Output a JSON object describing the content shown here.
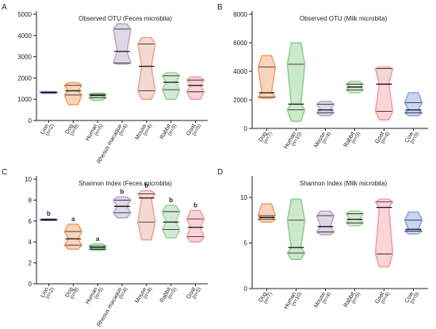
{
  "chart_data": [
    {
      "panel": "A",
      "type": "violin",
      "title": "Observed OTU (Feces microbita)",
      "ylim": [
        0,
        5000
      ],
      "yticks": [
        0,
        1000,
        2000,
        3000,
        4000,
        5000
      ],
      "groups": [
        {
          "name": "Lion",
          "n": "(n=2)",
          "color": "#8aa3d8",
          "min": 1280,
          "max": 1360,
          "q1": 1300,
          "median": 1320,
          "q3": 1340,
          "letter": ""
        },
        {
          "name": "Dog",
          "n": "(n=8)",
          "color": "#f2a06a",
          "min": 750,
          "max": 1780,
          "q1": 1200,
          "median": 1400,
          "q3": 1650,
          "letter": ""
        },
        {
          "name": "Human",
          "n": "(n=5)",
          "color": "#8fcf8f",
          "min": 950,
          "max": 1280,
          "q1": 1080,
          "median": 1180,
          "q3": 1230,
          "letter": ""
        },
        {
          "name": "Rhesus macaque",
          "n": "(n=4)",
          "color": "#b6a8cf",
          "min": 2650,
          "max": 4550,
          "q1": 2700,
          "median": 3250,
          "q3": 4300,
          "letter": ""
        },
        {
          "name": "Mouse",
          "n": "(n=4)",
          "color": "#e8a99a",
          "min": 1000,
          "max": 3900,
          "q1": 1400,
          "median": 2550,
          "q3": 3600,
          "letter": ""
        },
        {
          "name": "Rabbit",
          "n": "(n=5)",
          "color": "#9ed39e",
          "min": 1000,
          "max": 2250,
          "q1": 1450,
          "median": 1800,
          "q3": 2100,
          "letter": ""
        },
        {
          "name": "Goat",
          "n": "(n=5)",
          "color": "#f2a0a8",
          "min": 1000,
          "max": 2050,
          "q1": 1350,
          "median": 1650,
          "q3": 1900,
          "letter": ""
        }
      ]
    },
    {
      "panel": "B",
      "type": "violin",
      "title": "Observed OTU (Milk microbita)",
      "ylim": [
        0,
        8000
      ],
      "yticks": [
        0,
        2000,
        4000,
        6000,
        8000
      ],
      "groups": [
        {
          "name": "Dog",
          "n": "(n=7)",
          "color": "#f2a06a",
          "min": 2100,
          "max": 5100,
          "q1": 2200,
          "median": 2500,
          "q3": 4300,
          "letter": ""
        },
        {
          "name": "Human",
          "n": "(n=10)",
          "color": "#8fcf8f",
          "min": 500,
          "max": 6000,
          "q1": 1300,
          "median": 1700,
          "q3": 4500,
          "letter": ""
        },
        {
          "name": "Mouse",
          "n": "(n=4)",
          "color": "#b6a8cf",
          "min": 900,
          "max": 1900,
          "q1": 1100,
          "median": 1300,
          "q3": 1700,
          "letter": ""
        },
        {
          "name": "Rabbit",
          "n": "(n=5)",
          "color": "#9ed39e",
          "min": 2500,
          "max": 3300,
          "q1": 2700,
          "median": 2900,
          "q3": 3100,
          "letter": ""
        },
        {
          "name": "Goat",
          "n": "(n=4)",
          "color": "#f2a0a8",
          "min": 600,
          "max": 4300,
          "q1": 1200,
          "median": 3100,
          "q3": 4200,
          "letter": ""
        },
        {
          "name": "Cow",
          "n": "(n=5)",
          "color": "#8aa3e0",
          "min": 900,
          "max": 2500,
          "q1": 1100,
          "median": 1300,
          "q3": 1800,
          "letter": ""
        }
      ]
    },
    {
      "panel": "C",
      "type": "violin",
      "title": "Shannon Index (Feces microbita)",
      "ylim": [
        0,
        10
      ],
      "yticks": [
        0,
        2,
        4,
        6,
        8,
        10
      ],
      "groups": [
        {
          "name": "Lion",
          "n": "(n=2)",
          "color": "#8aa3d8",
          "min": 6.05,
          "max": 6.2,
          "q1": 6.08,
          "median": 6.12,
          "q3": 6.16,
          "letter": "b"
        },
        {
          "name": "Dog",
          "n": "(n=8)",
          "color": "#f2a06a",
          "min": 3.3,
          "max": 5.7,
          "q1": 3.7,
          "median": 4.3,
          "q3": 5.0,
          "letter": "a"
        },
        {
          "name": "Human",
          "n": "(n=5)",
          "color": "#8fcf8f",
          "min": 3.2,
          "max": 3.8,
          "q1": 3.3,
          "median": 3.45,
          "q3": 3.6,
          "letter": "a"
        },
        {
          "name": "Rhesus macaque",
          "n": "(n=4)",
          "color": "#b6a8cf",
          "min": 6.3,
          "max": 8.3,
          "q1": 6.8,
          "median": 7.4,
          "q3": 8.0,
          "letter": "b"
        },
        {
          "name": "Mouse",
          "n": "(n=4)",
          "color": "#e8a99a",
          "min": 4.2,
          "max": 8.9,
          "q1": 5.9,
          "median": 8.2,
          "q3": 8.6,
          "letter": "b"
        },
        {
          "name": "Rabbit",
          "n": "(n=5)",
          "color": "#9ed39e",
          "min": 4.4,
          "max": 7.5,
          "q1": 5.2,
          "median": 5.9,
          "q3": 6.9,
          "letter": "b"
        },
        {
          "name": "Goat",
          "n": "(n=5)",
          "color": "#f2a0a8",
          "min": 4.0,
          "max": 7.0,
          "q1": 4.5,
          "median": 5.4,
          "q3": 6.2,
          "letter": "b"
        }
      ]
    },
    {
      "panel": "D",
      "type": "violin",
      "title": "Shannon Index (Milk microbita)",
      "ylim": [
        0,
        12
      ],
      "yticks": [
        0,
        5,
        10
      ],
      "groups": [
        {
          "name": "Dog",
          "n": "(n=7)",
          "color": "#f2a06a",
          "min": 7.3,
          "max": 9.3,
          "q1": 7.6,
          "median": 7.8,
          "q3": 8.0,
          "letter": ""
        },
        {
          "name": "Human",
          "n": "(n=10)",
          "color": "#8fcf8f",
          "min": 3.2,
          "max": 9.8,
          "q1": 3.9,
          "median": 4.5,
          "q3": 7.5,
          "letter": ""
        },
        {
          "name": "Mouse",
          "n": "(n=4)",
          "color": "#b6a8cf",
          "min": 5.9,
          "max": 8.5,
          "q1": 6.2,
          "median": 6.8,
          "q3": 8.0,
          "letter": ""
        },
        {
          "name": "Rabbit",
          "n": "(n=5)",
          "color": "#9ed39e",
          "min": 6.9,
          "max": 8.5,
          "q1": 7.2,
          "median": 7.6,
          "q3": 8.2,
          "letter": ""
        },
        {
          "name": "Goat",
          "n": "(n=4)",
          "color": "#f2a0a8",
          "min": 2.4,
          "max": 9.8,
          "q1": 3.8,
          "median": 8.9,
          "q3": 9.5,
          "letter": ""
        },
        {
          "name": "Cow",
          "n": "(n=5)",
          "color": "#8aa3e0",
          "min": 6.0,
          "max": 8.4,
          "q1": 6.3,
          "median": 6.5,
          "q3": 7.5,
          "letter": ""
        }
      ]
    }
  ]
}
